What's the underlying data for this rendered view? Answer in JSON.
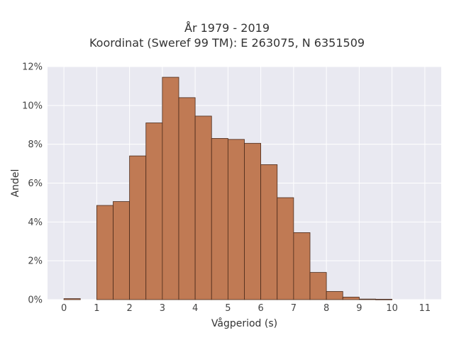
{
  "chart_data": {
    "type": "bar",
    "title_lines": [
      "År 1979 - 2019",
      "Koordinat (Sweref 99 TM): E 263075, N 6351509"
    ],
    "xlabel": "Vågperiod (s)",
    "ylabel": "Andel",
    "x_ticks": [
      "0",
      "1",
      "2",
      "3",
      "4",
      "5",
      "6",
      "7",
      "8",
      "9",
      "10",
      "11"
    ],
    "y_ticks": [
      "0%",
      "2%",
      "4%",
      "6%",
      "8%",
      "10%",
      "12%"
    ],
    "xlim": [
      -0.5,
      11.5
    ],
    "ylim": [
      0,
      12
    ],
    "bin_width": 0.5,
    "bins": [
      {
        "start": 0.0,
        "value": 0.05
      },
      {
        "start": 0.5,
        "value": 0.0
      },
      {
        "start": 1.0,
        "value": 4.85
      },
      {
        "start": 1.5,
        "value": 5.05
      },
      {
        "start": 2.0,
        "value": 7.4
      },
      {
        "start": 2.5,
        "value": 9.1
      },
      {
        "start": 3.0,
        "value": 11.45
      },
      {
        "start": 3.5,
        "value": 10.4
      },
      {
        "start": 4.0,
        "value": 9.45
      },
      {
        "start": 4.5,
        "value": 8.3
      },
      {
        "start": 5.0,
        "value": 8.25
      },
      {
        "start": 5.5,
        "value": 8.05
      },
      {
        "start": 6.0,
        "value": 6.95
      },
      {
        "start": 6.5,
        "value": 5.25
      },
      {
        "start": 7.0,
        "value": 3.45
      },
      {
        "start": 7.5,
        "value": 1.4
      },
      {
        "start": 8.0,
        "value": 0.42
      },
      {
        "start": 8.5,
        "value": 0.13
      },
      {
        "start": 9.0,
        "value": 0.03
      },
      {
        "start": 9.5,
        "value": 0.02
      }
    ],
    "grid": true,
    "colors": {
      "bar_fill": "#c07a54",
      "bar_edge": "#4a2a1a",
      "plot_bg": "#e9e9f1",
      "grid": "#ffffff"
    }
  }
}
